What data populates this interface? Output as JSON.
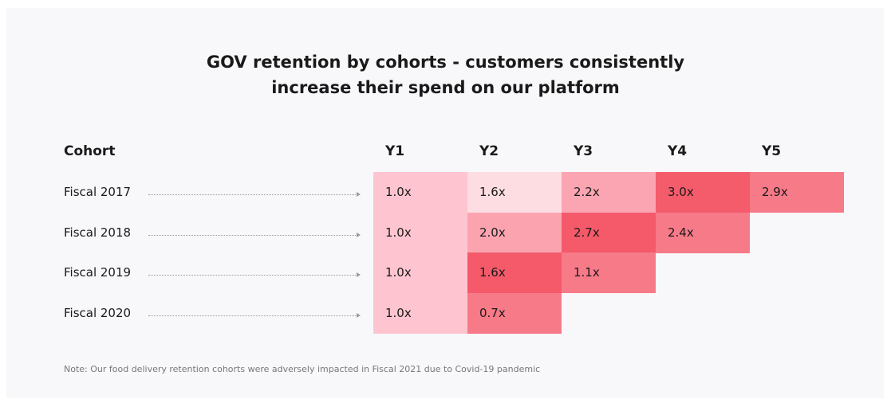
{
  "header": {
    "title_lines": [
      "GOV retention by cohorts - customers consistently",
      "increase their spend on our platform"
    ]
  },
  "table": {
    "row_header": "Cohort",
    "columns": [
      "Y1",
      "Y2",
      "Y3",
      "Y4",
      "Y5"
    ],
    "rows": [
      {
        "label": "Fiscal 2017",
        "cells": [
          "1.0x",
          "1.6x",
          "2.2x",
          "3.0x",
          "2.9x"
        ],
        "colors": [
          "#fec5d0",
          "#fedde2",
          "#fba5b2",
          "#f45b6b",
          "#f77a88"
        ]
      },
      {
        "label": "Fiscal 2018",
        "cells": [
          "1.0x",
          "2.0x",
          "2.7x",
          "2.4x"
        ],
        "colors": [
          "#fec5d0",
          "#fba4b0",
          "#f45a6a",
          "#f77a88"
        ]
      },
      {
        "label": "Fiscal 2019",
        "cells": [
          "1.0x",
          "1.6x",
          "1.1x"
        ],
        "colors": [
          "#fec5d0",
          "#f45a6a",
          "#f77a88"
        ]
      },
      {
        "label": "Fiscal 2020",
        "cells": [
          "1.0x",
          "0.7x"
        ],
        "colors": [
          "#fec5d0",
          "#f77a88"
        ]
      }
    ]
  },
  "note": "Note: Our food delivery retention cohorts were adversely impacted in Fiscal 2021 due to Covid-19 pandemic"
}
